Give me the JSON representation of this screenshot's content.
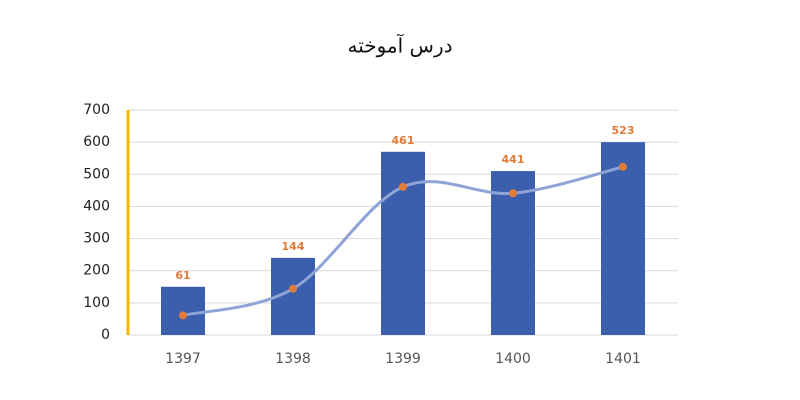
{
  "chart_data": {
    "type": "combo",
    "title": "درس آموخته",
    "categories": [
      "1397",
      "1398",
      "1399",
      "1400",
      "1401"
    ],
    "series": [
      {
        "type": "bar",
        "color": "#3b5fad",
        "values": [
          150,
          240,
          570,
          510,
          600
        ]
      },
      {
        "type": "line",
        "color": "#8fa3d6",
        "marker_color": "#e07b39",
        "values": [
          61,
          144,
          461,
          441,
          523
        ],
        "data_labels": true
      }
    ],
    "ylim": [
      0,
      700
    ],
    "yticks": [
      0,
      100,
      200,
      300,
      400,
      500,
      600,
      700
    ],
    "grid": true,
    "axis_color": "#f5b800"
  }
}
